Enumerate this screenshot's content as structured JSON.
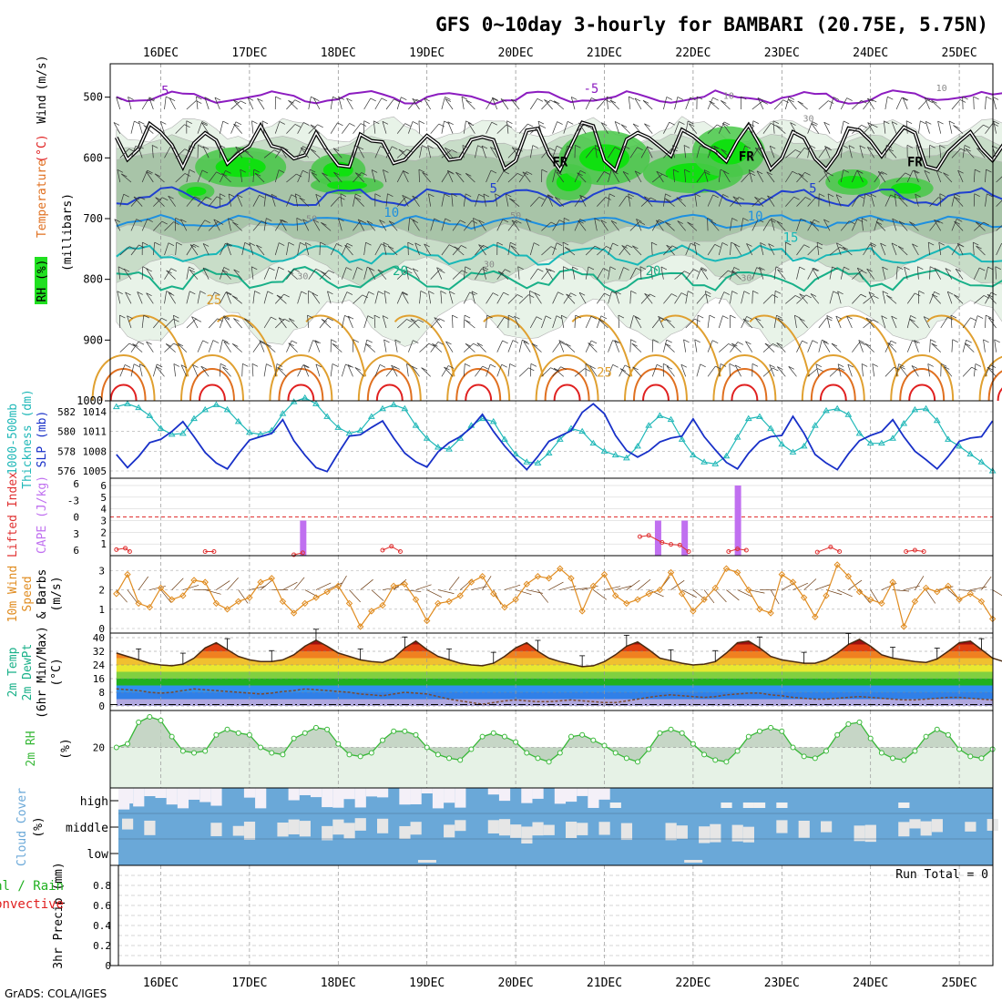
{
  "title": "GFS 0~10day 3-hourly for BAMBARI (20.75E, 5.75N)",
  "footer": "GrADS: COLA/IGES",
  "colors": {
    "purple": "#8c1cc0",
    "blue": "#2040d0",
    "lightblue": "#1e90e0",
    "cyan": "#18b8b8",
    "teal": "#18b088",
    "orange": "#e0a030",
    "darkorange": "#e07020",
    "red": "#e02020",
    "green": "#20c020",
    "rhgreen": "#38b838",
    "cloud": "#6aa8d8",
    "magenta": "#c070f0",
    "slp": "#1830c8",
    "thick": "#20b8b8",
    "li": "#e03030",
    "wind": "#e08c20"
  },
  "chart_data": {
    "type": "meteogram",
    "time_axis": {
      "start_day": "15DEC 12Z",
      "end_day": "25DEC 09Z",
      "step_hours": 3,
      "day_labels": [
        "16DEC",
        "17DEC",
        "18DEC",
        "19DEC",
        "20DEC",
        "21DEC",
        "22DEC",
        "23DEC",
        "24DEC",
        "25DEC"
      ]
    },
    "panels": [
      {
        "id": "upper_air",
        "title": "Temperature (°C) / Wind (m/s) / RH (%)",
        "ylabel_parts": [
          "RH (%)",
          "Temperature",
          "(°C)",
          "Wind",
          "(m/s)",
          "(millibars)"
        ],
        "yaxis": {
          "ticks": [
            "500",
            "600",
            "700",
            "800",
            "900",
            "1000"
          ],
          "range_mb": [
            445,
            1000
          ]
        },
        "isotherm_labels": [
          {
            "text": "5",
            "day": 0.05,
            "mb": 497,
            "color": "purple"
          },
          {
            "text": "-5",
            "day": 4.85,
            "mb": 493,
            "color": "purple"
          },
          {
            "text": "10",
            "day": 6.4,
            "mb": 503,
            "color": "gray"
          },
          {
            "text": "10",
            "day": 8.8,
            "mb": 490,
            "color": "gray"
          },
          {
            "text": "30",
            "day": 7.3,
            "mb": 540,
            "color": "gray"
          },
          {
            "text": "FR",
            "day": 4.5,
            "mb": 614,
            "color": "black"
          },
          {
            "text": "FR",
            "day": 6.6,
            "mb": 605,
            "color": "black"
          },
          {
            "text": "FR",
            "day": 8.5,
            "mb": 614,
            "color": "black"
          },
          {
            "text": "5",
            "day": 3.75,
            "mb": 657,
            "color": "blue"
          },
          {
            "text": "5",
            "day": 7.35,
            "mb": 657,
            "color": "blue"
          },
          {
            "text": "10",
            "day": 2.6,
            "mb": 697,
            "color": "lightblue"
          },
          {
            "text": "10",
            "day": 6.7,
            "mb": 703,
            "color": "lightblue"
          },
          {
            "text": "15",
            "day": 7.1,
            "mb": 738,
            "color": "cyan"
          },
          {
            "text": "50",
            "day": 1.7,
            "mb": 705,
            "color": "gray"
          },
          {
            "text": "50",
            "day": 4.0,
            "mb": 700,
            "color": "gray"
          },
          {
            "text": "30",
            "day": 3.7,
            "mb": 780,
            "color": "gray"
          },
          {
            "text": "30",
            "day": 1.6,
            "mb": 800,
            "color": "gray"
          },
          {
            "text": "30",
            "day": 6.6,
            "mb": 803,
            "color": "gray"
          },
          {
            "text": "20",
            "day": 2.7,
            "mb": 793,
            "color": "teal"
          },
          {
            "text": "20",
            "day": 5.55,
            "mb": 793,
            "color": "teal"
          },
          {
            "text": "25",
            "day": 0.6,
            "mb": 841,
            "color": "orange"
          },
          {
            "text": "25",
            "day": 5.0,
            "mb": 960,
            "color": "orange"
          }
        ]
      },
      {
        "id": "slp_thickness",
        "ylabel_left": [
          "1000-500mb",
          "Thickness (dm)"
        ],
        "ylabel_right": "SLP (mb)",
        "left_ticks": [
          "576",
          "578",
          "580",
          "582"
        ],
        "right_ticks": [
          "1005",
          "1008",
          "1011",
          "1014"
        ],
        "series": [
          {
            "name": "SLP (mb)",
            "color": "slp",
            "values": [
              1007.5,
              1005.5,
              1007.2,
              1009.3,
              1009.8,
              1011,
              1012.5,
              1010.2,
              1007.8,
              1006.2,
              1005.3,
              1007.6,
              1009.7,
              1010.2,
              1010.7,
              1012.8,
              1009.6,
              1007.4,
              1005.5,
              1004.9,
              1007.7,
              1010.3,
              1010.5,
              1011.6,
              1012.6,
              1010,
              1007.7,
              1006.4,
              1005.6,
              1007.9,
              1009.3,
              1010.2,
              1011.6,
              1013.6,
              1011,
              1008.8,
              1006.9,
              1005.2,
              1007.2,
              1009.5,
              1010.3,
              1011.1,
              1013.9,
              1015.2,
              1013.7,
              1010.4,
              1008.1,
              1007.1,
              1008,
              1009.4,
              1010,
              1010.3,
              1012.9,
              1010.2,
              1008.2,
              1006.3,
              1005.3,
              1007.7,
              1009.5,
              1010.2,
              1010.4,
              1013.3,
              1010.7,
              1007.5,
              1006.2,
              1005.2,
              1007.6,
              1009.6,
              1010.4,
              1011,
              1012.8,
              1010.2,
              1008,
              1006.7,
              1005.3,
              1007.2,
              1009.5,
              1010,
              1010.2,
              1012.6
            ]
          },
          {
            "name": "1000-500mb Thickness (dm)",
            "color": "thick",
            "values": [
              582.5,
              582.8,
              582.4,
              581.6,
              580.3,
              579.7,
              579.8,
              581.3,
              582.2,
              582.7,
              582.2,
              581,
              579.9,
              579.7,
              580.1,
              581.8,
              583,
              583.4,
              582.8,
              581.5,
              580.4,
              579.8,
              580.1,
              581.5,
              582.3,
              582.7,
              582.3,
              580.6,
              579.3,
              578.4,
              578.2,
              579.3,
              580.6,
              581.3,
              581,
              579.2,
              577.7,
              576.9,
              576.8,
              577.8,
              579.2,
              580.3,
              580,
              578.8,
              578,
              577.6,
              577.3,
              578.5,
              580.6,
              581.6,
              581.2,
              579.2,
              577.6,
              576.9,
              576.7,
              577.5,
              579.4,
              581.3,
              581.5,
              580.3,
              578.7,
              577.9,
              578.5,
              580.6,
              582.1,
              582.3,
              581.7,
              579.8,
              578.8,
              578.8,
              579.3,
              580.8,
              582.2,
              582.3,
              581.1,
              579.2,
              578.5,
              577.7,
              576.9,
              576
            ]
          }
        ]
      },
      {
        "id": "cape_li",
        "ylabel_left": "Lifted Index",
        "ylabel_right": "CAPE (J/kg)",
        "left_ticks": [
          "6",
          "-3",
          "0",
          "3",
          "6"
        ],
        "right_ticks": [
          "1",
          "2",
          "3",
          "4",
          "5",
          "6"
        ],
        "cape_bars": [
          {
            "day": 1.6,
            "value": 3.0
          },
          {
            "day": 5.6,
            "value": 3.0
          },
          {
            "day": 5.9,
            "value": 3.0
          },
          {
            "day": 6.5,
            "value": 6.0
          }
        ],
        "li_points": [
          {
            "day": -0.5,
            "value": 5.2
          },
          {
            "day": -0.4,
            "value": 5.0
          },
          {
            "day": -0.35,
            "value": 5.5
          },
          {
            "day": 0.5,
            "value": 5.5
          },
          {
            "day": 0.6,
            "value": 5.5
          },
          {
            "day": 1.5,
            "value": 6
          },
          {
            "day": 1.6,
            "value": 5.7
          },
          {
            "day": 2.5,
            "value": 5.3
          },
          {
            "day": 2.6,
            "value": 4.7
          },
          {
            "day": 2.7,
            "value": 5.5
          },
          {
            "day": 5.4,
            "value": 3.2
          },
          {
            "day": 5.5,
            "value": 3.0
          },
          {
            "day": 5.65,
            "value": 4.1
          },
          {
            "day": 5.75,
            "value": 4.4
          },
          {
            "day": 5.85,
            "value": 4.5
          },
          {
            "day": 5.95,
            "value": 5.5
          },
          {
            "day": 6.4,
            "value": 5.5
          },
          {
            "day": 6.5,
            "value": 5.1
          },
          {
            "day": 6.6,
            "value": 5.3
          },
          {
            "day": 7.4,
            "value": 5.6
          },
          {
            "day": 7.55,
            "value": 4.8
          },
          {
            "day": 7.65,
            "value": 5.5
          },
          {
            "day": 8.4,
            "value": 5.5
          },
          {
            "day": 8.5,
            "value": 5.3
          },
          {
            "day": 8.6,
            "value": 5.5
          }
        ]
      },
      {
        "id": "wind10m",
        "ylabel": [
          "10m Wind",
          "Speed",
          "& Barbs",
          "(m/s)"
        ],
        "ticks": [
          "0",
          "1",
          "2",
          "3"
        ],
        "values": [
          1.8,
          2.8,
          1.3,
          1.1,
          2.1,
          1.5,
          1.7,
          2.5,
          2.4,
          1.3,
          1,
          1.4,
          1.6,
          2.4,
          2.6,
          1.4,
          0.8,
          1.3,
          1.6,
          1.9,
          2.2,
          1.3,
          0.1,
          0.9,
          1.2,
          2.2,
          2.3,
          1.5,
          0.4,
          1.3,
          1.4,
          1.7,
          2.4,
          2.7,
          1.8,
          1.1,
          1.5,
          2.3,
          2.7,
          2.6,
          3.1,
          2.6,
          0.9,
          2.2,
          2.8,
          1.7,
          1.3,
          1.5,
          1.8,
          2,
          2.9,
          1.8,
          0.9,
          1.5,
          2.1,
          3.1,
          2.9,
          2,
          1,
          0.8,
          2.8,
          2.4,
          1.6,
          0.6,
          1.7,
          3.3,
          2.7,
          1.9,
          1.5,
          1.3,
          2.4,
          0.1,
          1.4,
          2.1,
          1.9,
          2.2,
          1.5,
          1.8,
          1.4,
          0.5
        ]
      },
      {
        "id": "temp",
        "ylabel": [
          "2m Temp",
          "2m DewPt",
          "(6hr Min/Max)",
          "(°C)"
        ],
        "ticks": [
          "0",
          "8",
          "16",
          "24",
          "32",
          "40"
        ],
        "temp_values": [
          31,
          29,
          27,
          25,
          24,
          23.5,
          24.5,
          28,
          34,
          37,
          33,
          29,
          27,
          26,
          26,
          27,
          30,
          35,
          38.5,
          35,
          31,
          29,
          27,
          26,
          25.5,
          28,
          34,
          38,
          33,
          29,
          27,
          25,
          24,
          23.5,
          25,
          29,
          34,
          37,
          32,
          28,
          26,
          24.5,
          23,
          23.5,
          26,
          30,
          35,
          37.5,
          33,
          28,
          26.5,
          25,
          24,
          24.5,
          26,
          31,
          37,
          38,
          34,
          29,
          27,
          26,
          25,
          25,
          27,
          31,
          36,
          39,
          35,
          30,
          28,
          27,
          26,
          25.5,
          27.5,
          32,
          37,
          38,
          33,
          28,
          26,
          25,
          24,
          23
        ],
        "dew_values": [
          10,
          9.5,
          9,
          8,
          7.5,
          8,
          9,
          10,
          9.5,
          9,
          8.5,
          8,
          7.5,
          7,
          7.5,
          8.5,
          9,
          10,
          9.5,
          9,
          8.5,
          8,
          7,
          6.5,
          6,
          7,
          8,
          7.5,
          7,
          5.5,
          4,
          3,
          2,
          1,
          2,
          3,
          3.5,
          3,
          2.5,
          2.5,
          3,
          3.5,
          3,
          2.5,
          2,
          2,
          3,
          4,
          5,
          6,
          6.5,
          6,
          5.5,
          5,
          5.5,
          6.5,
          7,
          7.5,
          7.5,
          6.5,
          6,
          5,
          4.5,
          4,
          4,
          4.5,
          5,
          5.5,
          5,
          4.5,
          4,
          3.5,
          3.5,
          4,
          4.5,
          5,
          5,
          4.5,
          4,
          3.5
        ]
      },
      {
        "id": "rh2m",
        "ylabel": [
          "2m RH",
          "(%)"
        ],
        "ticks": [
          "20"
        ],
        "values": [
          20,
          22,
          34,
          37,
          35,
          26,
          18,
          17,
          18,
          27,
          30,
          28,
          27,
          20,
          17,
          16,
          25,
          28,
          31,
          30,
          22,
          16,
          15,
          17,
          24,
          29,
          29,
          27,
          20,
          16,
          14,
          13,
          19,
          26,
          28,
          26,
          23,
          17,
          14,
          12,
          17,
          26,
          27,
          24,
          21,
          17,
          14,
          12,
          19,
          28,
          30,
          28,
          22,
          16,
          13,
          12,
          18,
          26,
          29,
          31,
          29,
          20,
          15,
          14,
          18,
          27,
          33,
          34,
          25,
          17,
          14,
          13,
          18,
          26,
          30,
          27,
          19,
          15,
          14,
          19
        ]
      },
      {
        "id": "cloud",
        "ylabel": [
          "Cloud Cover",
          "(%)"
        ],
        "levels": [
          "high",
          "middle",
          "low"
        ]
      },
      {
        "id": "precip",
        "ylabel_left": [
          "Total / Rain",
          "Convective"
        ],
        "ylabel": "3hr Precip (mm)",
        "ticks": [
          "0",
          "0.2",
          "0.4",
          "0.6",
          "0.8"
        ],
        "ylim": [
          0,
          1
        ],
        "run_total": "Run Total = 0",
        "values": []
      }
    ]
  }
}
